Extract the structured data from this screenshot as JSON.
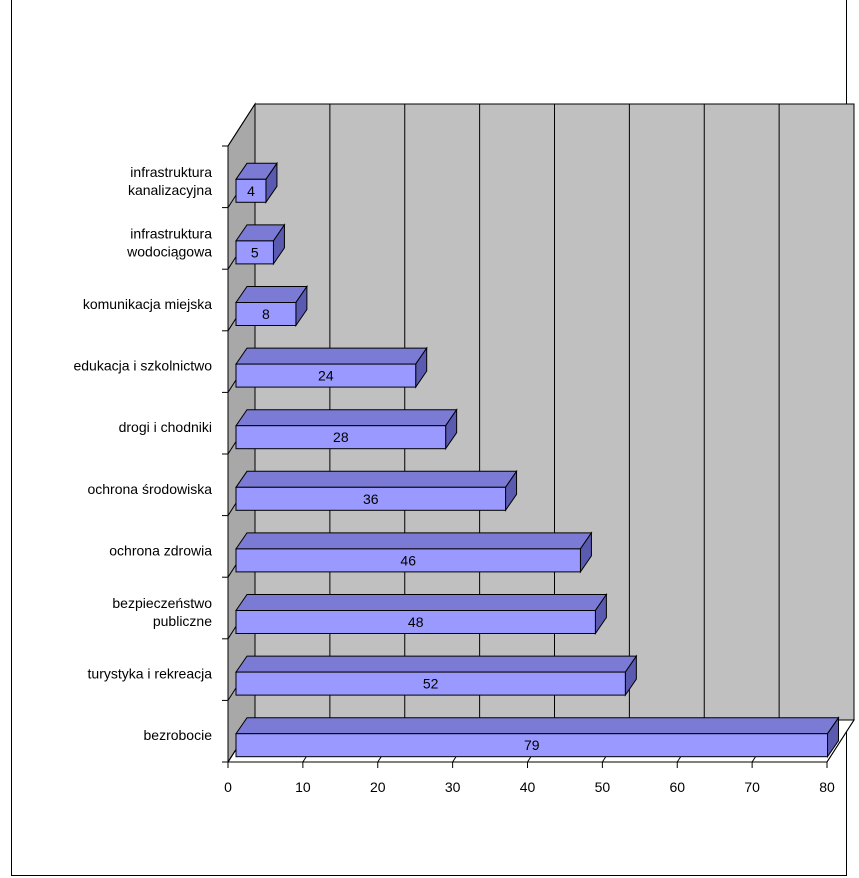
{
  "chart_data": {
    "type": "bar",
    "orientation": "horizontal",
    "style": "3d",
    "title": "",
    "categories": [
      [
        "infrastruktura",
        "kanalizacyjna"
      ],
      [
        "infrastruktura",
        "wodociągowa"
      ],
      [
        "komunikacja miejska"
      ],
      [
        "edukacja i szkolnictwo"
      ],
      [
        "drogi i chodniki"
      ],
      [
        "ochrona środowiska"
      ],
      [
        "ochrona zdrowia"
      ],
      [
        "bezpieczeństwo",
        "publiczne"
      ],
      [
        "turystyka i rekreacja"
      ],
      [
        "bezrobocie"
      ]
    ],
    "values": [
      4,
      5,
      8,
      24,
      28,
      36,
      46,
      48,
      52,
      79
    ],
    "xlim": [
      0,
      80
    ],
    "xticks": [
      0,
      10,
      20,
      30,
      40,
      50,
      60,
      70,
      80
    ],
    "xlabel": "",
    "ylabel": "",
    "grid": true,
    "colors": {
      "bar_front": "#9999ff",
      "bar_top": "#7b7bd6",
      "bar_side": "#5a5ab0",
      "wall": "#c0c0c0",
      "floor": "#ffffff",
      "grid": "#000000"
    }
  }
}
